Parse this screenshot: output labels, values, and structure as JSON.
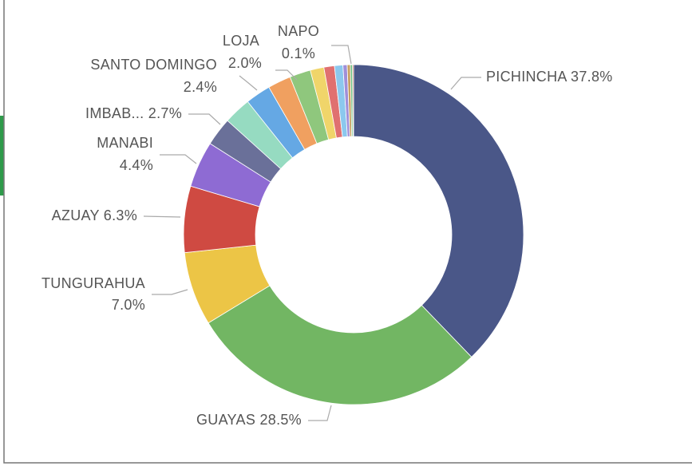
{
  "chart_data": {
    "type": "donut",
    "categories": [
      "PICHINCHA",
      "GUAYAS",
      "TUNGURAHUA",
      "AZUAY",
      "MANABI",
      "IMBAB...",
      null,
      "SANTO DOMINGO",
      null,
      "LOJA",
      null,
      null,
      null,
      null,
      null,
      null,
      "NAPO"
    ],
    "values": [
      37.8,
      28.5,
      7.0,
      6.3,
      4.4,
      2.7,
      2.6,
      2.4,
      2.2,
      2.0,
      1.3,
      1.0,
      0.8,
      0.4,
      0.3,
      0.2,
      0.1
    ],
    "value_labels": [
      "37.8%",
      "28.5%",
      "7.0%",
      "6.3%",
      "4.4%",
      "2.7%",
      null,
      "2.4%",
      null,
      "2.0%",
      null,
      null,
      null,
      null,
      null,
      null,
      "0.1%"
    ],
    "colors": [
      "#4a5788",
      "#72b663",
      "#ecc546",
      "#cf4a42",
      "#8e6bd3",
      "#6a7099",
      "#96dbc1",
      "#65a8e4",
      "#f0a060",
      "#8fc77d",
      "#f0d56a",
      "#e07070",
      "#8cc8ee",
      "#a08fd8",
      "#c8a060",
      "#6cbf80",
      "#c06040"
    ]
  }
}
